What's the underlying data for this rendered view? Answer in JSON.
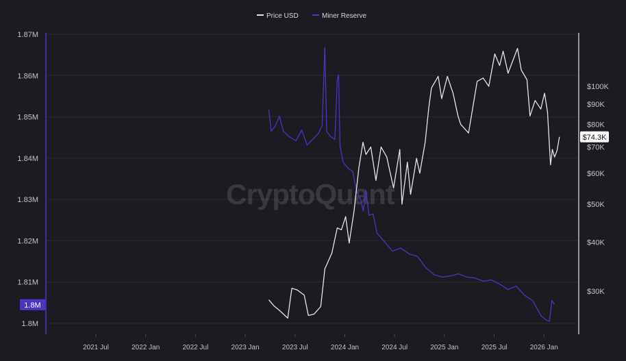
{
  "legend": {
    "price_label": "Price USD",
    "reserve_label": "Miner Reserve"
  },
  "watermark": "CryptoQuant",
  "chart_data": {
    "type": "line",
    "x_ticks": [
      "2021 Jul",
      "2022 Jan",
      "2022 Jul",
      "2023 Jan",
      "2023 Jul",
      "2024 Jan",
      "2024 Jul",
      "2025 Jan",
      "2025 Jul",
      "2026 Jan"
    ],
    "left_axis": {
      "ticks": [
        "1.87M",
        "1.86M",
        "1.85M",
        "1.84M",
        "1.83M",
        "1.82M",
        "1.81M",
        "1.8M"
      ],
      "ylim": [
        1.8,
        1.87
      ],
      "current_label": "1.8M"
    },
    "right_axis": {
      "scale": "log",
      "ticks": [
        "$100K",
        "$90K",
        "$80K",
        "$70K",
        "$60K",
        "$50K",
        "$40K",
        "$30K"
      ],
      "tick_values": [
        100000,
        90000,
        80000,
        70000,
        60000,
        50000,
        40000,
        30000
      ],
      "current_label": "$74.3K"
    },
    "series": [
      {
        "name": "Miner Reserve",
        "color": "#4b35c4",
        "points": [
          [
            "2023-04-01",
            1.8517
          ],
          [
            "2023-04-10",
            1.8465
          ],
          [
            "2023-04-25",
            1.8478
          ],
          [
            "2023-05-10",
            1.8502
          ],
          [
            "2023-05-25",
            1.8465
          ],
          [
            "2023-06-15",
            1.8452
          ],
          [
            "2023-07-10",
            1.8442
          ],
          [
            "2023-08-01",
            1.8468
          ],
          [
            "2023-08-20",
            1.8432
          ],
          [
            "2023-09-10",
            1.8445
          ],
          [
            "2023-10-01",
            1.846
          ],
          [
            "2023-10-15",
            1.8478
          ],
          [
            "2023-10-25",
            1.8668
          ],
          [
            "2023-11-01",
            1.8465
          ],
          [
            "2023-11-15",
            1.8452
          ],
          [
            "2023-12-01",
            1.8445
          ],
          [
            "2023-12-10",
            1.859
          ],
          [
            "2023-12-15",
            1.8602
          ],
          [
            "2023-12-20",
            1.843
          ],
          [
            "2024-01-01",
            1.839
          ],
          [
            "2024-01-20",
            1.8375
          ],
          [
            "2024-02-05",
            1.8368
          ],
          [
            "2024-02-20",
            1.8318
          ],
          [
            "2024-03-05",
            1.83
          ],
          [
            "2024-03-15",
            1.8272
          ],
          [
            "2024-03-25",
            1.8322
          ],
          [
            "2024-04-05",
            1.8262
          ],
          [
            "2024-04-20",
            1.8265
          ],
          [
            "2024-05-05",
            1.8218
          ],
          [
            "2024-06-01",
            1.8198
          ],
          [
            "2024-07-01",
            1.8175
          ],
          [
            "2024-08-01",
            1.8182
          ],
          [
            "2024-09-01",
            1.8168
          ],
          [
            "2024-10-01",
            1.8162
          ],
          [
            "2024-11-01",
            1.8135
          ],
          [
            "2024-12-01",
            1.8118
          ],
          [
            "2025-01-01",
            1.8112
          ],
          [
            "2025-02-01",
            1.8115
          ],
          [
            "2025-03-01",
            1.812
          ],
          [
            "2025-04-01",
            1.8112
          ],
          [
            "2025-05-01",
            1.811
          ],
          [
            "2025-06-01",
            1.8102
          ],
          [
            "2025-07-01",
            1.8105
          ],
          [
            "2025-08-01",
            1.8095
          ],
          [
            "2025-09-01",
            1.8082
          ],
          [
            "2025-10-01",
            1.809
          ],
          [
            "2025-11-01",
            1.8068
          ],
          [
            "2025-12-01",
            1.8055
          ],
          [
            "2026-01-01",
            1.8018
          ],
          [
            "2026-01-20",
            1.8008
          ],
          [
            "2026-02-01",
            1.8005
          ],
          [
            "2026-02-10",
            1.8055
          ],
          [
            "2026-02-20",
            1.8045
          ]
        ]
      },
      {
        "name": "Price USD",
        "color": "#e6e6ea",
        "points": [
          [
            "2023-04-01",
            28500
          ],
          [
            "2023-04-20",
            27500
          ],
          [
            "2023-05-10",
            26800
          ],
          [
            "2023-06-10",
            25600
          ],
          [
            "2023-06-25",
            30500
          ],
          [
            "2023-07-15",
            30200
          ],
          [
            "2023-08-10",
            29300
          ],
          [
            "2023-08-25",
            26000
          ],
          [
            "2023-09-15",
            26200
          ],
          [
            "2023-10-10",
            27400
          ],
          [
            "2023-10-25",
            34200
          ],
          [
            "2023-11-20",
            37500
          ],
          [
            "2023-12-10",
            43500
          ],
          [
            "2023-12-25",
            43000
          ],
          [
            "2024-01-10",
            46500
          ],
          [
            "2024-01-23",
            39800
          ],
          [
            "2024-02-10",
            48000
          ],
          [
            "2024-02-28",
            62000
          ],
          [
            "2024-03-14",
            72000
          ],
          [
            "2024-03-25",
            67000
          ],
          [
            "2024-04-12",
            70000
          ],
          [
            "2024-05-01",
            57500
          ],
          [
            "2024-05-20",
            70000
          ],
          [
            "2024-06-10",
            66000
          ],
          [
            "2024-07-05",
            55000
          ],
          [
            "2024-07-28",
            69000
          ],
          [
            "2024-08-05",
            50000
          ],
          [
            "2024-08-25",
            64000
          ],
          [
            "2024-09-06",
            53000
          ],
          [
            "2024-09-28",
            65500
          ],
          [
            "2024-10-10",
            60000
          ],
          [
            "2024-10-30",
            72000
          ],
          [
            "2024-11-12",
            88000
          ],
          [
            "2024-11-22",
            99000
          ],
          [
            "2024-12-17",
            106000
          ],
          [
            "2024-12-30",
            93000
          ],
          [
            "2025-01-20",
            106000
          ],
          [
            "2025-02-10",
            96000
          ],
          [
            "2025-02-28",
            84000
          ],
          [
            "2025-03-10",
            80000
          ],
          [
            "2025-04-08",
            76000
          ],
          [
            "2025-05-10",
            103000
          ],
          [
            "2025-06-01",
            105000
          ],
          [
            "2025-06-22",
            100000
          ],
          [
            "2025-07-14",
            121000
          ],
          [
            "2025-08-01",
            113000
          ],
          [
            "2025-08-14",
            123000
          ],
          [
            "2025-09-01",
            108000
          ],
          [
            "2025-10-06",
            125000
          ],
          [
            "2025-10-20",
            110000
          ],
          [
            "2025-11-10",
            104000
          ],
          [
            "2025-11-21",
            84000
          ],
          [
            "2025-12-10",
            92000
          ],
          [
            "2025-12-31",
            87500
          ],
          [
            "2026-01-14",
            96000
          ],
          [
            "2026-01-25",
            86000
          ],
          [
            "2026-02-05",
            63000
          ],
          [
            "2026-02-12",
            69000
          ],
          [
            "2026-02-20",
            66000
          ],
          [
            "2026-03-01",
            68500
          ],
          [
            "2026-03-10",
            74300
          ]
        ]
      }
    ],
    "grid": true,
    "legend_position": "top-center"
  }
}
